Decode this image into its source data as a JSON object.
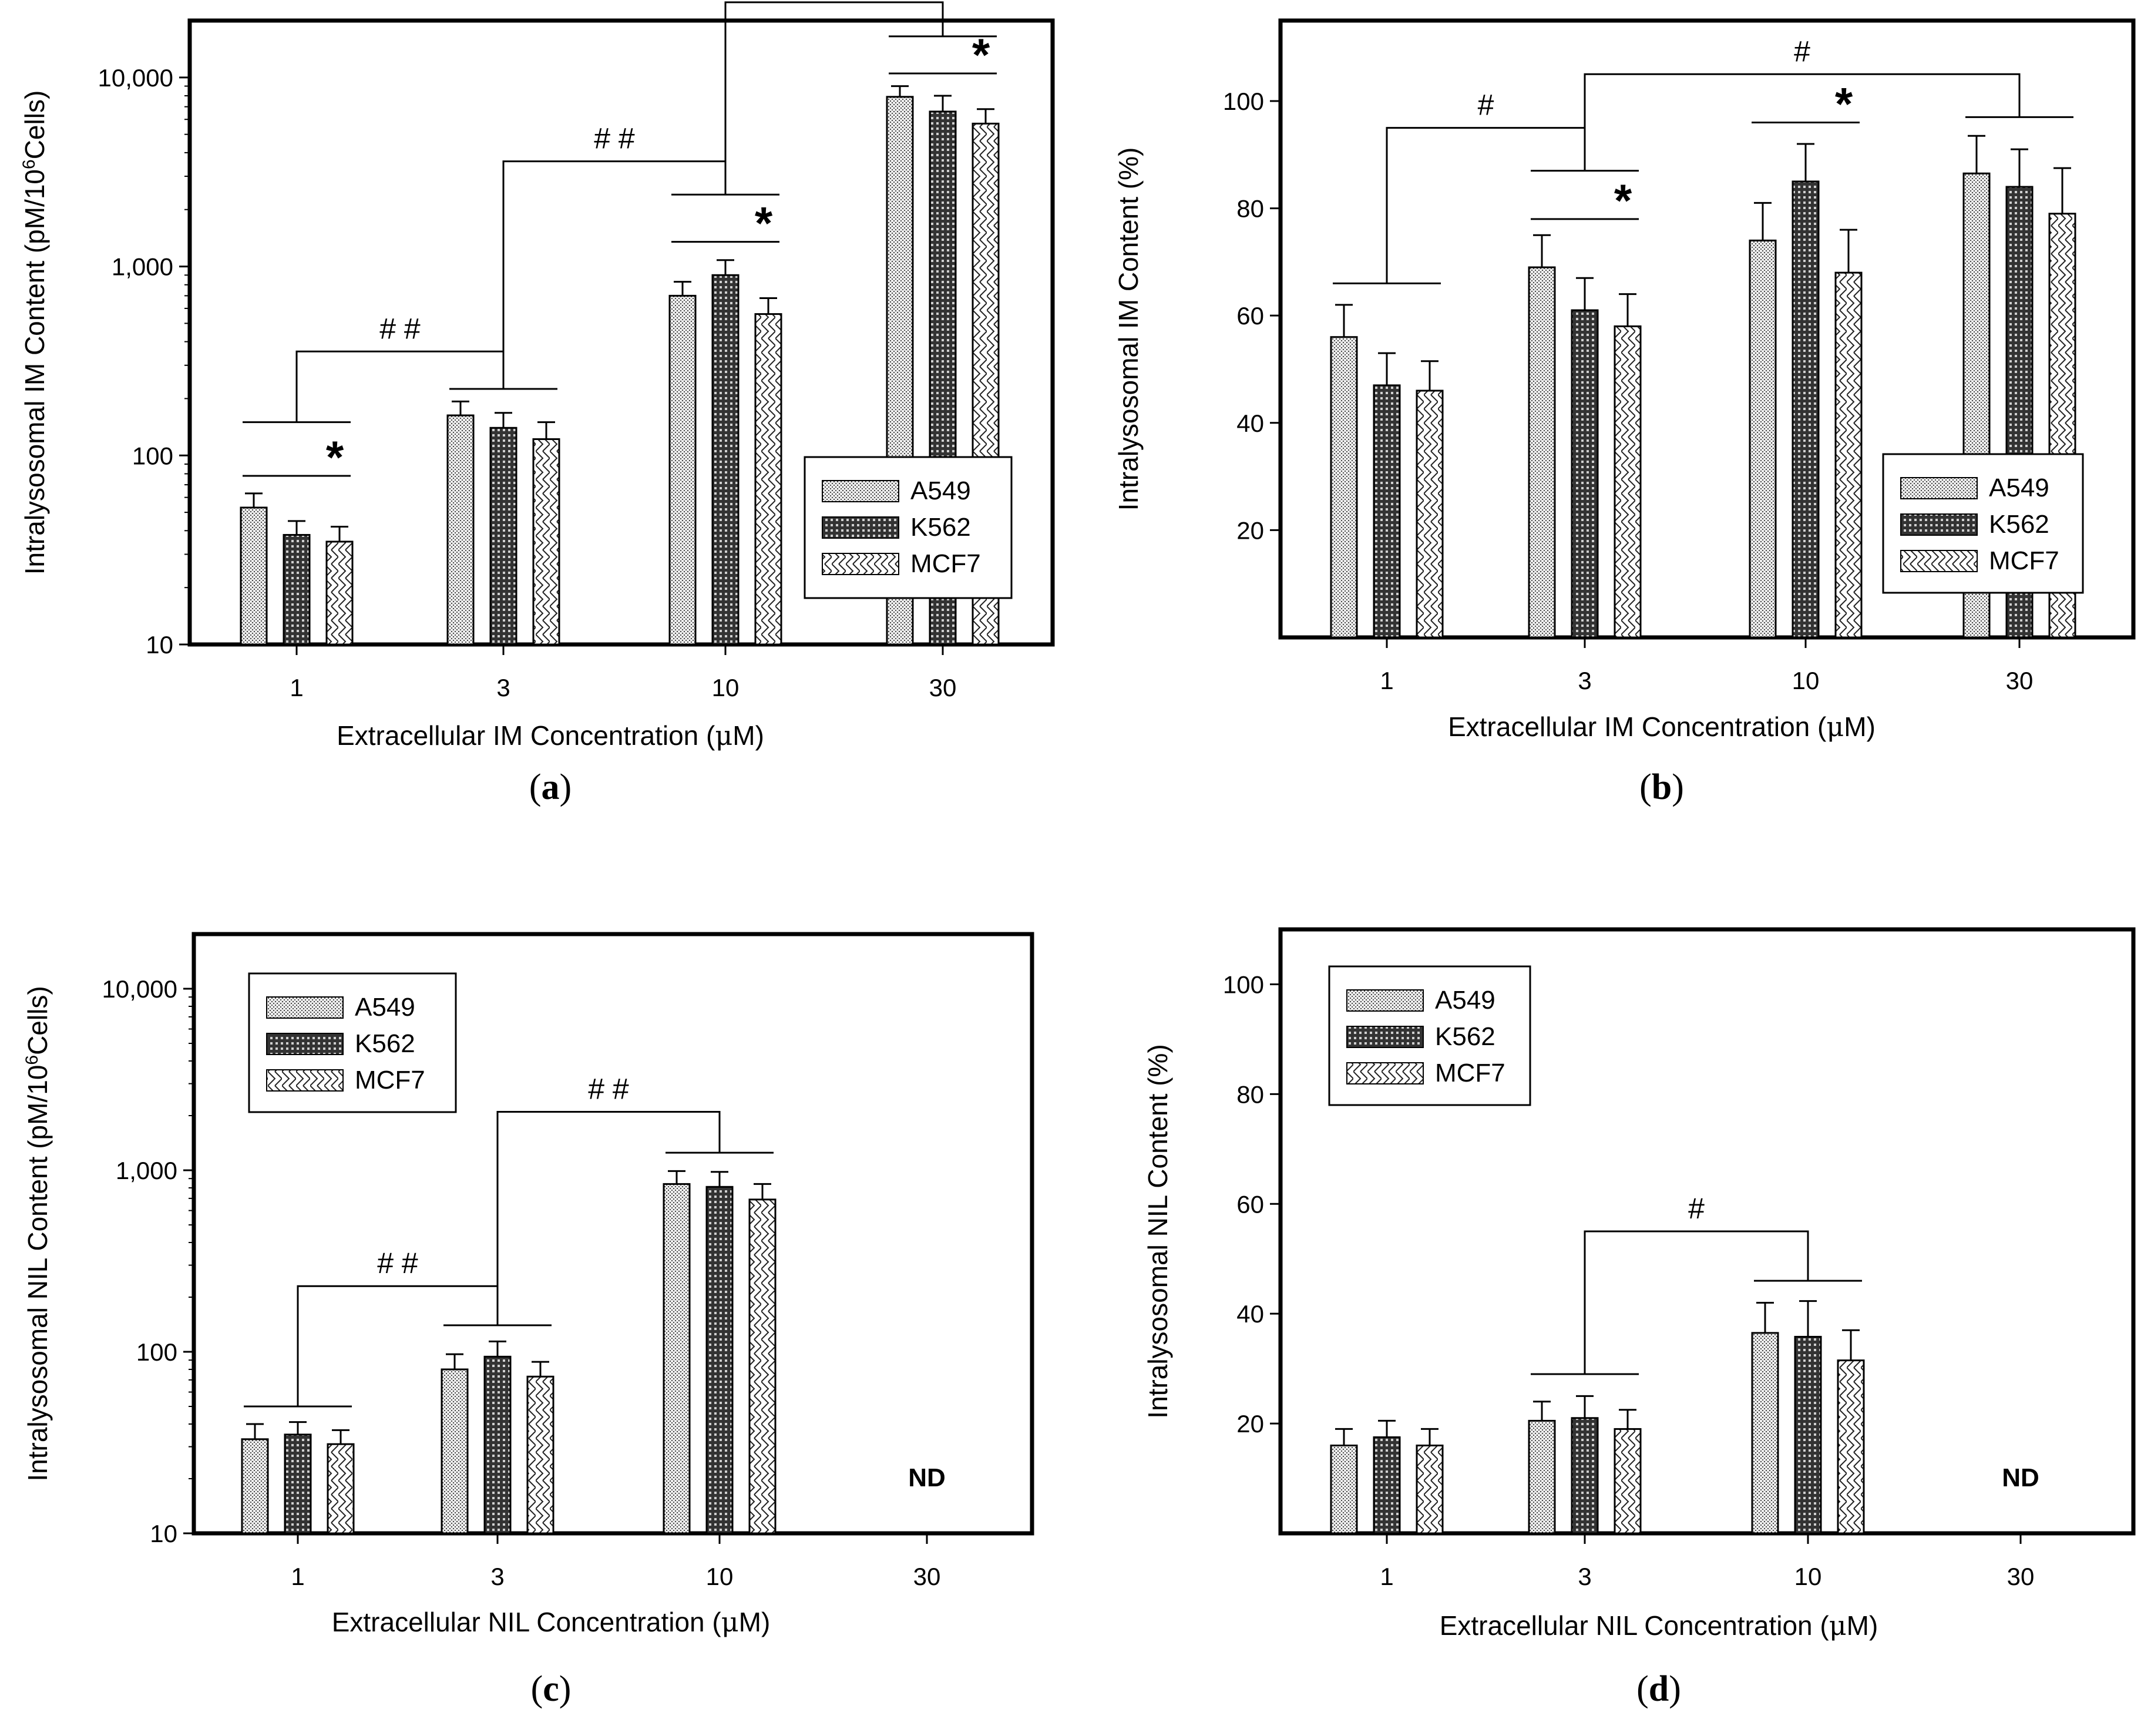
{
  "chart_data": [
    {
      "id": "a",
      "type": "bar",
      "panel_label": "a",
      "scale": "log",
      "ylim": [
        10,
        20000
      ],
      "yticks": [
        10,
        100,
        1000,
        10000
      ],
      "yticklabels": [
        "10",
        "100",
        "1,000",
        "10,000"
      ],
      "categories": [
        "1",
        "3",
        "10",
        "30"
      ],
      "ylabel_main": "Intralysosomal IM Content (pM/10",
      "ylabel_sup": "6",
      "ylabel_end": "Cells)",
      "xlabel_main": "Extracellular IM Concentration (",
      "xlabel_mu": "μ",
      "xlabel_end": "M)",
      "series": [
        {
          "name": "A549",
          "values": [
            53,
            163,
            700,
            7900
          ],
          "errors": [
            10,
            30,
            130,
            1100
          ]
        },
        {
          "name": "K562",
          "values": [
            38,
            140,
            900,
            6600
          ],
          "errors": [
            7,
            28,
            180,
            1400
          ]
        },
        {
          "name": "MCF7",
          "values": [
            35,
            122,
            560,
            5700
          ],
          "errors": [
            7,
            28,
            120,
            1100
          ]
        }
      ],
      "legend": {
        "position": "right",
        "labels": [
          "A549",
          "K562",
          "MCF7"
        ]
      },
      "nd_label": "",
      "significance": [
        {
          "type": "group",
          "cat": 0,
          "value": 150
        },
        {
          "type": "star",
          "cat": 0,
          "value": 78,
          "label": "*"
        },
        {
          "type": "group",
          "cat": 1,
          "value": 225
        },
        {
          "type": "group",
          "cat": 2,
          "value": 2400
        },
        {
          "type": "star",
          "cat": 2,
          "value": 1350,
          "label": "*"
        },
        {
          "type": "group",
          "cat": 3,
          "value": 16500
        },
        {
          "type": "star",
          "cat": 3,
          "value": 10500,
          "label": "*"
        },
        {
          "type": "bracket",
          "from": 0,
          "to": 1,
          "value": 355,
          "label": "# #"
        },
        {
          "type": "bracket",
          "from": 1,
          "to": 2,
          "value": 3600,
          "label": "# #"
        },
        {
          "type": "bracket",
          "from": 2,
          "to": 3,
          "value": 25000,
          "label": "# #"
        }
      ]
    },
    {
      "id": "b",
      "type": "bar",
      "panel_label": "b",
      "scale": "linear",
      "ylim": [
        0,
        115
      ],
      "yticks": [
        20,
        40,
        60,
        80,
        100
      ],
      "yticklabels": [
        "20",
        "40",
        "60",
        "80",
        "100"
      ],
      "categories": [
        "1",
        "3",
        "10",
        "30"
      ],
      "ylabel_main": "Intralysosomal IM Content (%)",
      "ylabel_sup": "",
      "ylabel_end": "",
      "xlabel_main": "Extracellular IM Concentration (",
      "xlabel_mu": "μ",
      "xlabel_end": "M)",
      "series": [
        {
          "name": "A549",
          "values": [
            56,
            69,
            74,
            86.5
          ],
          "errors": [
            6,
            6,
            7,
            7
          ]
        },
        {
          "name": "K562",
          "values": [
            47,
            61,
            85,
            84
          ],
          "errors": [
            6,
            6,
            7,
            7
          ]
        },
        {
          "name": "MCF7",
          "values": [
            46,
            58,
            68,
            79
          ],
          "errors": [
            5.5,
            6,
            8,
            8.5
          ]
        }
      ],
      "legend": {
        "position": "right",
        "labels": [
          "A549",
          "K562",
          "MCF7"
        ]
      },
      "nd_label": "",
      "significance": [
        {
          "type": "group",
          "cat": 0,
          "value": 66
        },
        {
          "type": "group",
          "cat": 1,
          "value": 87
        },
        {
          "type": "star",
          "cat": 1,
          "value": 78,
          "label": "*"
        },
        {
          "type": "star",
          "cat": 2,
          "value": 96,
          "label": "*"
        },
        {
          "type": "group",
          "cat": 3,
          "value": 97
        },
        {
          "type": "bracket",
          "from": 0,
          "to": 1,
          "value": 95,
          "label": "#"
        },
        {
          "type": "bracket",
          "from": 1,
          "to": 3,
          "value": 105,
          "label": "#"
        }
      ]
    },
    {
      "id": "c",
      "type": "bar",
      "panel_label": "c",
      "scale": "log",
      "ylim": [
        10,
        20000
      ],
      "yticks": [
        10,
        100,
        1000,
        10000
      ],
      "yticklabels": [
        "10",
        "100",
        "1,000",
        "10,000"
      ],
      "categories": [
        "1",
        "3",
        "10",
        "30"
      ],
      "ylabel_main": "Intralysosomal NIL Content (pM/10",
      "ylabel_sup": "6",
      "ylabel_end": "Cells)",
      "xlabel_main": "Extracellular NIL Concentration (",
      "xlabel_mu": "μ",
      "xlabel_end": "M)",
      "series": [
        {
          "name": "A549",
          "values": [
            33,
            80,
            840,
            0
          ],
          "errors": [
            7,
            17,
            150,
            0
          ]
        },
        {
          "name": "K562",
          "values": [
            35,
            94,
            810,
            0
          ],
          "errors": [
            6,
            20,
            170,
            0
          ]
        },
        {
          "name": "MCF7",
          "values": [
            31,
            73,
            690,
            0
          ],
          "errors": [
            6,
            15,
            150,
            0
          ]
        }
      ],
      "legend": {
        "position": "top-left",
        "labels": [
          "A549",
          "K562",
          "MCF7"
        ]
      },
      "nd_label": "ND",
      "nd_category": 3,
      "significance": [
        {
          "type": "group",
          "cat": 0,
          "value": 50
        },
        {
          "type": "group",
          "cat": 1,
          "value": 140
        },
        {
          "type": "group",
          "cat": 2,
          "value": 1250
        },
        {
          "type": "bracket",
          "from": 0,
          "to": 1,
          "value": 230,
          "label": "# #"
        },
        {
          "type": "bracket",
          "from": 1,
          "to": 2,
          "value": 2100,
          "label": "# #"
        }
      ]
    },
    {
      "id": "d",
      "type": "bar",
      "panel_label": "d",
      "scale": "linear",
      "ylim": [
        0,
        110
      ],
      "yticks": [
        20,
        40,
        60,
        80,
        100
      ],
      "yticklabels": [
        "20",
        "40",
        "60",
        "80",
        "100"
      ],
      "categories": [
        "1",
        "3",
        "10",
        "30"
      ],
      "ylabel_main": "Intralysosomal NIL Content (%)",
      "ylabel_sup": "",
      "ylabel_end": "",
      "xlabel_main": "Extracellular NIL Concentration (",
      "xlabel_mu": "μ",
      "xlabel_end": "M)",
      "series": [
        {
          "name": "A549",
          "values": [
            16,
            20.5,
            36.5,
            0
          ],
          "errors": [
            3,
            3.5,
            5.5,
            0
          ]
        },
        {
          "name": "K562",
          "values": [
            17.5,
            21,
            35.8,
            0
          ],
          "errors": [
            3,
            4,
            6.5,
            0
          ]
        },
        {
          "name": "MCF7",
          "values": [
            16,
            19,
            31.5,
            0
          ],
          "errors": [
            3,
            3.5,
            5.5,
            0
          ]
        }
      ],
      "legend": {
        "position": "top-left",
        "labels": [
          "A549",
          "K562",
          "MCF7"
        ]
      },
      "nd_label": "ND",
      "nd_category": 3,
      "significance": [
        {
          "type": "group",
          "cat": 1,
          "value": 29
        },
        {
          "type": "group",
          "cat": 2,
          "value": 46
        },
        {
          "type": "bracket",
          "from": 1,
          "to": 2,
          "value": 55,
          "label": "#"
        }
      ]
    }
  ]
}
